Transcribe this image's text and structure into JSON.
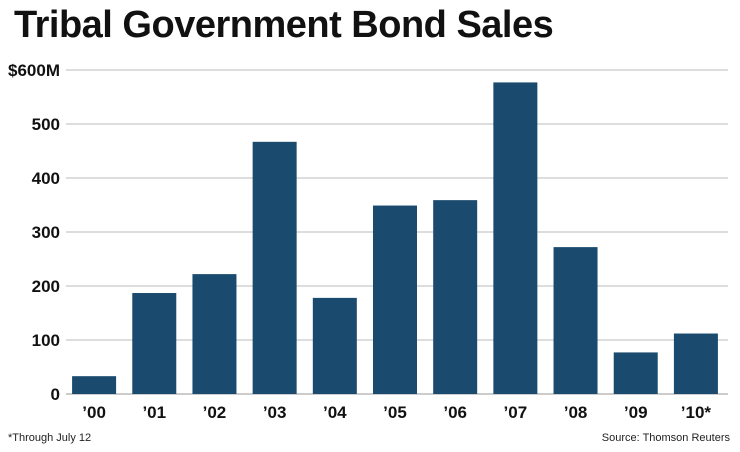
{
  "chart_data": {
    "type": "bar",
    "title": "Tribal Government Bond Sales",
    "categories": [
      "’00",
      "’01",
      "’02",
      "’03",
      "’04",
      "’05",
      "’06",
      "’07",
      "’08",
      "’09",
      "’10*"
    ],
    "values": [
      33,
      187,
      222,
      467,
      178,
      349,
      359,
      577,
      272,
      77,
      112
    ],
    "ylim": [
      0,
      600
    ],
    "yticks": [
      0,
      100,
      200,
      300,
      400,
      500,
      600
    ],
    "ytick_labels": [
      "0",
      "100",
      "200",
      "300",
      "400",
      "500",
      "$600M"
    ],
    "grid": true,
    "bar_color": "#1a4a6e",
    "grid_color": "#bbbbbb"
  },
  "footnote": "*Through July 12",
  "source": "Source: Thomson Reuters"
}
